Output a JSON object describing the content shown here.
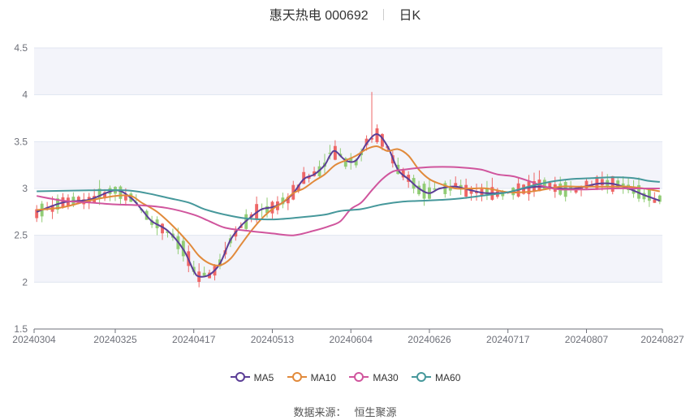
{
  "header": {
    "stock_name": "惠天热电 000692",
    "period": "日K"
  },
  "source": {
    "label": "数据来源：",
    "value": "恒生聚源"
  },
  "chart_data": {
    "type": "candlestick",
    "y_ticks": [
      "4.5",
      "4",
      "3.5",
      "3",
      "2.5",
      "2",
      "1.5"
    ],
    "y_values": [
      4.5,
      4.0,
      3.5,
      3.0,
      2.5,
      2.0,
      1.5
    ],
    "ylim": [
      1.5,
      4.5
    ],
    "x_ticks": [
      "20240304",
      "20240325",
      "20240417",
      "20240513",
      "20240604",
      "20240626",
      "20240717",
      "20240807",
      "20240827"
    ],
    "x_tick_index": [
      0,
      15,
      30,
      45,
      60,
      75,
      90,
      105,
      119
    ],
    "n_days": 120,
    "up_color": "#ee6666",
    "down_color": "#91cc75",
    "ma": [
      {
        "name": "MA5",
        "color": "#5b3e96",
        "points": [
          [
            0,
            2.75
          ],
          [
            5,
            2.85
          ],
          [
            10,
            2.88
          ],
          [
            15,
            2.98
          ],
          [
            18,
            2.9
          ],
          [
            20,
            2.78
          ],
          [
            22,
            2.65
          ],
          [
            25,
            2.55
          ],
          [
            28,
            2.35
          ],
          [
            30,
            2.12
          ],
          [
            31,
            2.06
          ],
          [
            33,
            2.08
          ],
          [
            35,
            2.2
          ],
          [
            37,
            2.45
          ],
          [
            39,
            2.6
          ],
          [
            41,
            2.7
          ],
          [
            43,
            2.78
          ],
          [
            45,
            2.8
          ],
          [
            47,
            2.85
          ],
          [
            49,
            2.95
          ],
          [
            51,
            3.1
          ],
          [
            53,
            3.15
          ],
          [
            55,
            3.25
          ],
          [
            56,
            3.35
          ],
          [
            57,
            3.4
          ],
          [
            59,
            3.3
          ],
          [
            61,
            3.3
          ],
          [
            63,
            3.48
          ],
          [
            65,
            3.58
          ],
          [
            67,
            3.45
          ],
          [
            69,
            3.2
          ],
          [
            71,
            3.1
          ],
          [
            73,
            3.0
          ],
          [
            75,
            2.95
          ],
          [
            77,
            3.0
          ],
          [
            80,
            3.02
          ],
          [
            83,
            2.98
          ],
          [
            86,
            2.95
          ],
          [
            90,
            2.96
          ],
          [
            93,
            3.0
          ],
          [
            96,
            3.02
          ],
          [
            100,
            3.0
          ],
          [
            103,
            3.0
          ],
          [
            107,
            3.05
          ],
          [
            110,
            3.05
          ],
          [
            113,
            3.0
          ],
          [
            116,
            2.93
          ],
          [
            119,
            2.87
          ]
        ]
      },
      {
        "name": "MA10",
        "color": "#e18a3b",
        "points": [
          [
            0,
            2.77
          ],
          [
            5,
            2.8
          ],
          [
            10,
            2.87
          ],
          [
            15,
            2.92
          ],
          [
            18,
            2.92
          ],
          [
            20,
            2.85
          ],
          [
            23,
            2.75
          ],
          [
            26,
            2.6
          ],
          [
            29,
            2.42
          ],
          [
            31,
            2.28
          ],
          [
            33,
            2.2
          ],
          [
            35,
            2.18
          ],
          [
            37,
            2.25
          ],
          [
            39,
            2.4
          ],
          [
            41,
            2.55
          ],
          [
            43,
            2.68
          ],
          [
            45,
            2.78
          ],
          [
            47,
            2.85
          ],
          [
            49,
            2.95
          ],
          [
            51,
            3.0
          ],
          [
            53,
            3.08
          ],
          [
            55,
            3.15
          ],
          [
            57,
            3.25
          ],
          [
            59,
            3.3
          ],
          [
            61,
            3.35
          ],
          [
            63,
            3.42
          ],
          [
            65,
            3.45
          ],
          [
            67,
            3.4
          ],
          [
            69,
            3.42
          ],
          [
            71,
            3.35
          ],
          [
            73,
            3.2
          ],
          [
            75,
            3.1
          ],
          [
            77,
            3.05
          ],
          [
            80,
            3.0
          ],
          [
            83,
            3.0
          ],
          [
            86,
            3.0
          ],
          [
            90,
            2.96
          ],
          [
            93,
            2.96
          ],
          [
            96,
            2.98
          ],
          [
            100,
            3.02
          ],
          [
            103,
            3.02
          ],
          [
            107,
            3.02
          ],
          [
            110,
            3.02
          ],
          [
            113,
            3.02
          ],
          [
            116,
            3.0
          ],
          [
            119,
            2.97
          ]
        ]
      },
      {
        "name": "MA30",
        "color": "#d0559d",
        "points": [
          [
            0,
            2.92
          ],
          [
            5,
            2.87
          ],
          [
            10,
            2.85
          ],
          [
            15,
            2.83
          ],
          [
            20,
            2.82
          ],
          [
            25,
            2.79
          ],
          [
            30,
            2.72
          ],
          [
            33,
            2.65
          ],
          [
            36,
            2.58
          ],
          [
            40,
            2.55
          ],
          [
            45,
            2.52
          ],
          [
            49,
            2.5
          ],
          [
            53,
            2.55
          ],
          [
            56,
            2.6
          ],
          [
            58,
            2.65
          ],
          [
            60,
            2.78
          ],
          [
            62,
            2.85
          ],
          [
            64,
            2.98
          ],
          [
            66,
            3.1
          ],
          [
            68,
            3.18
          ],
          [
            70,
            3.2
          ],
          [
            73,
            3.22
          ],
          [
            76,
            3.23
          ],
          [
            79,
            3.23
          ],
          [
            82,
            3.22
          ],
          [
            85,
            3.2
          ],
          [
            88,
            3.15
          ],
          [
            91,
            3.13
          ],
          [
            94,
            3.08
          ],
          [
            97,
            3.02
          ],
          [
            100,
            2.99
          ],
          [
            105,
            2.99
          ],
          [
            110,
            3.0
          ],
          [
            115,
            3.0
          ],
          [
            119,
            3.0
          ]
        ]
      },
      {
        "name": "MA60",
        "color": "#46989b",
        "points": [
          [
            0,
            2.97
          ],
          [
            10,
            2.98
          ],
          [
            17,
            2.98
          ],
          [
            21,
            2.95
          ],
          [
            25,
            2.9
          ],
          [
            29,
            2.85
          ],
          [
            32,
            2.78
          ],
          [
            36,
            2.72
          ],
          [
            40,
            2.68
          ],
          [
            45,
            2.67
          ],
          [
            50,
            2.69
          ],
          [
            55,
            2.72
          ],
          [
            58,
            2.76
          ],
          [
            62,
            2.78
          ],
          [
            66,
            2.83
          ],
          [
            70,
            2.86
          ],
          [
            74,
            2.87
          ],
          [
            78,
            2.88
          ],
          [
            82,
            2.9
          ],
          [
            86,
            2.93
          ],
          [
            90,
            2.96
          ],
          [
            94,
            3.02
          ],
          [
            98,
            3.07
          ],
          [
            102,
            3.1
          ],
          [
            106,
            3.11
          ],
          [
            110,
            3.12
          ],
          [
            114,
            3.11
          ],
          [
            117,
            3.08
          ],
          [
            119,
            3.07
          ]
        ]
      }
    ]
  },
  "legend": [
    {
      "label": "MA5",
      "color": "#5b3e96"
    },
    {
      "label": "MA10",
      "color": "#e18a3b"
    },
    {
      "label": "MA30",
      "color": "#d0559d"
    },
    {
      "label": "MA60",
      "color": "#46989b"
    }
  ]
}
